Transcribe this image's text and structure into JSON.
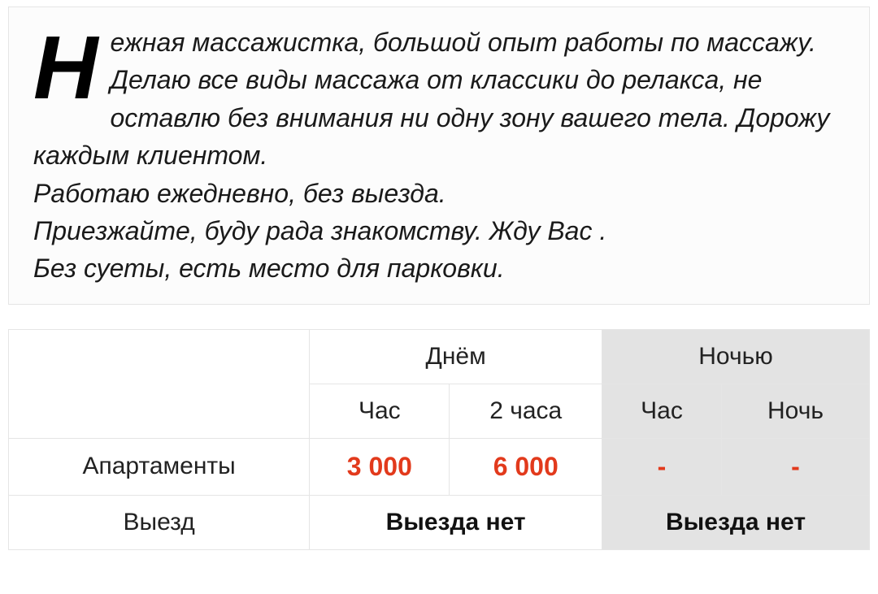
{
  "description": {
    "dropcap": "Н",
    "body": "ежная массажистка, большой опыт работы по массажу. Делаю все виды массажа от классики до релакса, не оставлю без внимания ни одну зону вашего тела. Дорожу каждым клиентом.\nРаботаю ежедневно, без выезда.\nПриезжайте, буду рада знакомству. Жду Вас .\nБез суеты, есть место для парковки.",
    "border_color": "#e5e5e5",
    "background_color": "#fcfcfc",
    "text_color": "#1a1a1a",
    "font_size_pt": 24,
    "dropcap_font_size_pt": 80
  },
  "pricing_table": {
    "type": "table",
    "day_header": "Днём",
    "night_header": "Ночью",
    "subheaders_day": {
      "hour": "Час",
      "two_hours": "2 часа"
    },
    "subheaders_night": {
      "hour": "Час",
      "night": "Ночь"
    },
    "rows": {
      "apartments": {
        "label": "Апартаменты",
        "day_hour": "3 000",
        "day_two_hours": "6 000",
        "night_hour": "-",
        "night_full": "-"
      },
      "outcall": {
        "label": "Выезд",
        "day_value": "Выезда нет",
        "night_value": "Выезда нет"
      }
    },
    "colors": {
      "border": "#e5e5e5",
      "night_bg": "#e3e3e3",
      "price_text": "#e23a1c",
      "text": "#222222",
      "bold_text": "#111111",
      "background": "#ffffff"
    },
    "font_size_pt": 22,
    "price_font_size_pt": 24
  }
}
